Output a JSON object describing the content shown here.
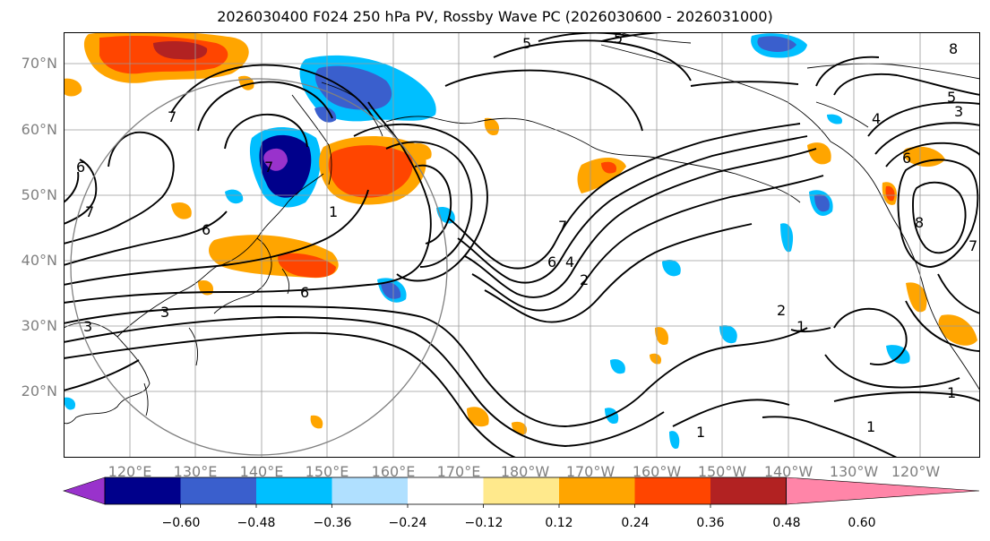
{
  "title": "2026030400 F024 250 hPa PV, Rossby Wave PC (2026030600 - 2026031000)",
  "lat_labels": [
    "70°N",
    "60°N",
    "50°N",
    "40°N",
    "30°N",
    "20°N"
  ],
  "lon_labels": [
    "120°E",
    "130°E",
    "140°E",
    "150°E",
    "160°E",
    "170°E",
    "180°W",
    "170°W",
    "160°W",
    "150°W",
    "140°W",
    "130°W",
    "120°W"
  ],
  "colorbar": {
    "ticks": [
      "−0.60",
      "−0.48",
      "−0.36",
      "−0.24",
      "−0.12",
      "0.12",
      "0.24",
      "0.36",
      "0.48",
      "0.60"
    ],
    "colors": [
      "#9932cc",
      "#00008b",
      "#3a5fcd",
      "#00bfff",
      "#b0e0ff",
      "#ffffff",
      "#ffe98c",
      "#ffa500",
      "#ff4500",
      "#b22222",
      "#ff85a8"
    ]
  },
  "contour_labels": [
    "5",
    "5",
    "8",
    "7",
    "5",
    "3",
    "4",
    "6",
    "7",
    "6",
    "7",
    "6",
    "1",
    "7",
    "6",
    "4",
    "2",
    "6",
    "8",
    "7",
    "3",
    "3",
    "2",
    "1",
    "1",
    "1",
    "1"
  ]
}
